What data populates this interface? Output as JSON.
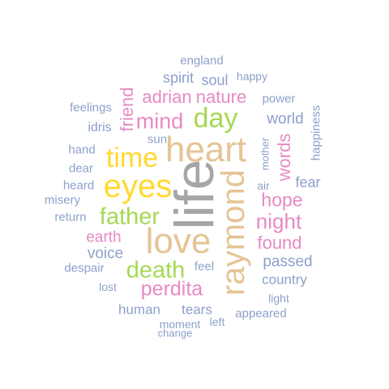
{
  "colors": {
    "gray": "#a6a6a6",
    "tan": "#e5c494",
    "yellow": "#ffd92f",
    "green": "#a6d854",
    "pink": "#e78ac3",
    "blue": "#8da0cb"
  },
  "words": [
    {
      "text": "life",
      "weight": 100,
      "color": "gray"
    },
    {
      "text": "heart",
      "weight": 80,
      "color": "tan"
    },
    {
      "text": "love",
      "weight": 80,
      "color": "tan"
    },
    {
      "text": "raymond",
      "weight": 78,
      "color": "tan"
    },
    {
      "text": "eyes",
      "weight": 62,
      "color": "yellow"
    },
    {
      "text": "time",
      "weight": 58,
      "color": "yellow"
    },
    {
      "text": "day",
      "weight": 52,
      "color": "green"
    },
    {
      "text": "death",
      "weight": 50,
      "color": "green"
    },
    {
      "text": "father",
      "weight": 45,
      "color": "green"
    },
    {
      "text": "mind",
      "weight": 40,
      "color": "pink"
    },
    {
      "text": "night",
      "weight": 36,
      "color": "pink"
    },
    {
      "text": "perdita",
      "weight": 36,
      "color": "pink"
    },
    {
      "text": "hope",
      "weight": 32,
      "color": "pink"
    },
    {
      "text": "found",
      "weight": 32,
      "color": "pink"
    },
    {
      "text": "words",
      "weight": 32,
      "color": "pink"
    },
    {
      "text": "adrian",
      "weight": 30,
      "color": "pink"
    },
    {
      "text": "nature",
      "weight": 30,
      "color": "pink"
    },
    {
      "text": "friend",
      "weight": 30,
      "color": "pink"
    },
    {
      "text": "earth",
      "weight": 26,
      "color": "pink"
    },
    {
      "text": "world",
      "weight": 26,
      "color": "blue"
    },
    {
      "text": "passed",
      "weight": 26,
      "color": "blue"
    },
    {
      "text": "voice",
      "weight": 26,
      "color": "blue"
    },
    {
      "text": "spirit",
      "weight": 24,
      "color": "blue"
    },
    {
      "text": "soul",
      "weight": 24,
      "color": "blue"
    },
    {
      "text": "fear",
      "weight": 24,
      "color": "blue"
    },
    {
      "text": "human",
      "weight": 24,
      "color": "blue"
    },
    {
      "text": "tears",
      "weight": 24,
      "color": "blue"
    },
    {
      "text": "country",
      "weight": 24,
      "color": "blue"
    },
    {
      "text": "idris",
      "weight": 22,
      "color": "blue"
    },
    {
      "text": "happiness",
      "weight": 20,
      "color": "blue"
    },
    {
      "text": "mother",
      "weight": 18,
      "color": "blue"
    },
    {
      "text": "england",
      "weight": 20,
      "color": "blue"
    },
    {
      "text": "happy",
      "weight": 18,
      "color": "blue"
    },
    {
      "text": "power",
      "weight": 20,
      "color": "blue"
    },
    {
      "text": "feelings",
      "weight": 20,
      "color": "blue"
    },
    {
      "text": "sun",
      "weight": 20,
      "color": "blue"
    },
    {
      "text": "hand",
      "weight": 20,
      "color": "blue"
    },
    {
      "text": "dear",
      "weight": 20,
      "color": "blue"
    },
    {
      "text": "heard",
      "weight": 20,
      "color": "blue"
    },
    {
      "text": "misery",
      "weight": 20,
      "color": "blue"
    },
    {
      "text": "air",
      "weight": 18,
      "color": "blue"
    },
    {
      "text": "return",
      "weight": 20,
      "color": "blue"
    },
    {
      "text": "despair",
      "weight": 20,
      "color": "blue"
    },
    {
      "text": "feel",
      "weight": 20,
      "color": "blue"
    },
    {
      "text": "lost",
      "weight": 18,
      "color": "blue"
    },
    {
      "text": "light",
      "weight": 18,
      "color": "blue"
    },
    {
      "text": "appeared",
      "weight": 20,
      "color": "blue"
    },
    {
      "text": "moment",
      "weight": 18,
      "color": "blue"
    },
    {
      "text": "left",
      "weight": 18,
      "color": "blue"
    },
    {
      "text": "change",
      "weight": 16,
      "color": "blue"
    }
  ]
}
